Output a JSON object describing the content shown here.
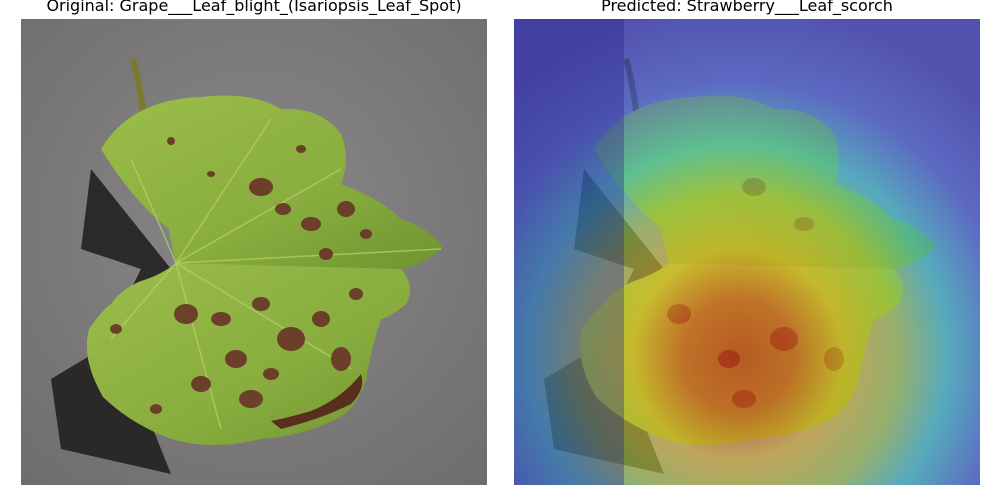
{
  "panels": [
    {
      "title": "Original: Grape___Leaf_blight_(Isariopsis_Leaf_Spot)"
    },
    {
      "title": "Predicted: Strawberry___Leaf_scorch"
    }
  ],
  "colors": {
    "background": "#808080",
    "leaf_green": "#8db040",
    "lesion": "#6a3a28",
    "heatmap_cold": "#3a3aa8",
    "heatmap_hot": "#d42a10"
  }
}
